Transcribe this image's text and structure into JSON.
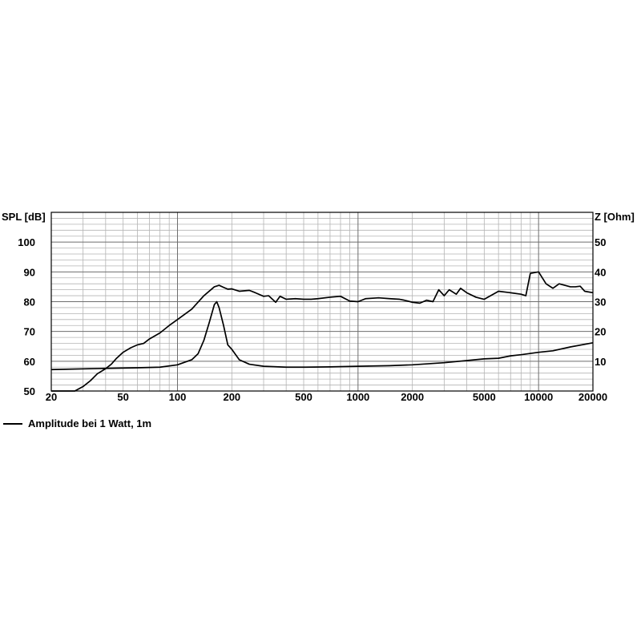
{
  "chart_data": {
    "type": "line",
    "x_scale": "log",
    "xlim": [
      20,
      20000
    ],
    "ylim": [
      50,
      110
    ],
    "y2lim": [
      0,
      60
    ],
    "ylabel": "SPL [dB]",
    "y2label": "Z [Ohm]",
    "x_ticks": [
      20,
      50,
      100,
      200,
      500,
      1000,
      2000,
      5000,
      10000,
      20000
    ],
    "y_ticks": [
      50,
      60,
      70,
      80,
      90,
      100
    ],
    "y2_ticks": [
      10,
      20,
      30,
      40,
      50
    ],
    "grid": true,
    "legend_position": "bottom-left",
    "series": [
      {
        "name": "Amplitude bei 1 Watt, 1m",
        "axis": "left",
        "points": [
          [
            20,
            50
          ],
          [
            27,
            50
          ],
          [
            30,
            51.5
          ],
          [
            33,
            53.5
          ],
          [
            36,
            55.8
          ],
          [
            40,
            57.5
          ],
          [
            43,
            59
          ],
          [
            46,
            61
          ],
          [
            50,
            63
          ],
          [
            55,
            64.5
          ],
          [
            60,
            65.5
          ],
          [
            65,
            66
          ],
          [
            70,
            67.5
          ],
          [
            80,
            69.5
          ],
          [
            90,
            72
          ],
          [
            100,
            74
          ],
          [
            120,
            77.5
          ],
          [
            140,
            82
          ],
          [
            160,
            85
          ],
          [
            170,
            85.5
          ],
          [
            180,
            84.8
          ],
          [
            190,
            84.2
          ],
          [
            200,
            84.3
          ],
          [
            220,
            83.5
          ],
          [
            250,
            83.8
          ],
          [
            270,
            83
          ],
          [
            300,
            81.8
          ],
          [
            320,
            82
          ],
          [
            350,
            79.8
          ],
          [
            370,
            81.8
          ],
          [
            400,
            80.8
          ],
          [
            450,
            81
          ],
          [
            500,
            80.8
          ],
          [
            550,
            80.8
          ],
          [
            600,
            81
          ],
          [
            700,
            81.5
          ],
          [
            800,
            81.8
          ],
          [
            900,
            80.2
          ],
          [
            1000,
            80
          ],
          [
            1100,
            81
          ],
          [
            1300,
            81.3
          ],
          [
            1500,
            81
          ],
          [
            1700,
            80.8
          ],
          [
            1800,
            80.5
          ],
          [
            2000,
            79.8
          ],
          [
            2200,
            79.5
          ],
          [
            2400,
            80.5
          ],
          [
            2600,
            80
          ],
          [
            2800,
            84
          ],
          [
            3000,
            82
          ],
          [
            3200,
            84
          ],
          [
            3500,
            82.5
          ],
          [
            3700,
            84.5
          ],
          [
            4000,
            83
          ],
          [
            4500,
            81.5
          ],
          [
            5000,
            80.8
          ],
          [
            6000,
            83.5
          ],
          [
            7000,
            83
          ],
          [
            8000,
            82.5
          ],
          [
            8500,
            82
          ],
          [
            9000,
            89.5
          ],
          [
            10000,
            90
          ],
          [
            11000,
            86
          ],
          [
            12000,
            84.5
          ],
          [
            13000,
            86
          ],
          [
            15000,
            85
          ],
          [
            16000,
            85
          ],
          [
            17000,
            85.2
          ],
          [
            18000,
            83.5
          ],
          [
            20000,
            83
          ]
        ]
      },
      {
        "name": "",
        "axis": "right",
        "points": [
          [
            20,
            7.2
          ],
          [
            40,
            7.6
          ],
          [
            60,
            7.8
          ],
          [
            80,
            8
          ],
          [
            100,
            8.8
          ],
          [
            120,
            10.5
          ],
          [
            130,
            12.5
          ],
          [
            140,
            17
          ],
          [
            150,
            23
          ],
          [
            160,
            29
          ],
          [
            165,
            30
          ],
          [
            170,
            28
          ],
          [
            180,
            22
          ],
          [
            190,
            15.5
          ],
          [
            200,
            14
          ],
          [
            220,
            10.5
          ],
          [
            250,
            9
          ],
          [
            300,
            8.3
          ],
          [
            400,
            8
          ],
          [
            500,
            8
          ],
          [
            700,
            8.1
          ],
          [
            1000,
            8.3
          ],
          [
            1500,
            8.5
          ],
          [
            2000,
            8.8
          ],
          [
            3000,
            9.5
          ],
          [
            5000,
            10.8
          ],
          [
            6000,
            11
          ],
          [
            7000,
            11.8
          ],
          [
            8000,
            12.2
          ],
          [
            10000,
            13
          ],
          [
            12000,
            13.5
          ],
          [
            15000,
            14.8
          ],
          [
            20000,
            16.2
          ]
        ]
      }
    ]
  }
}
